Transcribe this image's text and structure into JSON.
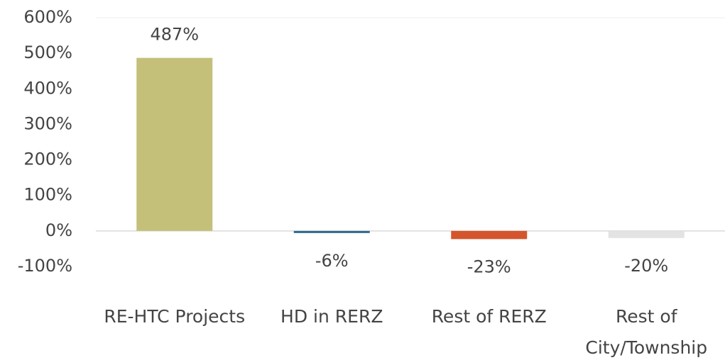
{
  "chart_data": {
    "type": "bar",
    "categories": [
      "RE-HTC Projects",
      "HD in RERZ",
      "Rest of RERZ",
      "Rest of City/Township"
    ],
    "values": [
      487,
      -6,
      -23,
      -20
    ],
    "value_labels": [
      "487%",
      "-6%",
      "-23%",
      "-20%"
    ],
    "colors": [
      "#c4c07a",
      "#2e6b8f",
      "#d4552d",
      "#e3e3e3"
    ],
    "ylim": [
      -100,
      600
    ],
    "yticks": [
      {
        "value": -100,
        "label": "-100%"
      },
      {
        "value": 0,
        "label": "0%"
      },
      {
        "value": 100,
        "label": "100%"
      },
      {
        "value": 200,
        "label": "200%"
      },
      {
        "value": 300,
        "label": "300%"
      },
      {
        "value": 400,
        "label": "400%"
      },
      {
        "value": 500,
        "label": "500%"
      },
      {
        "value": 600,
        "label": "600%"
      }
    ]
  }
}
